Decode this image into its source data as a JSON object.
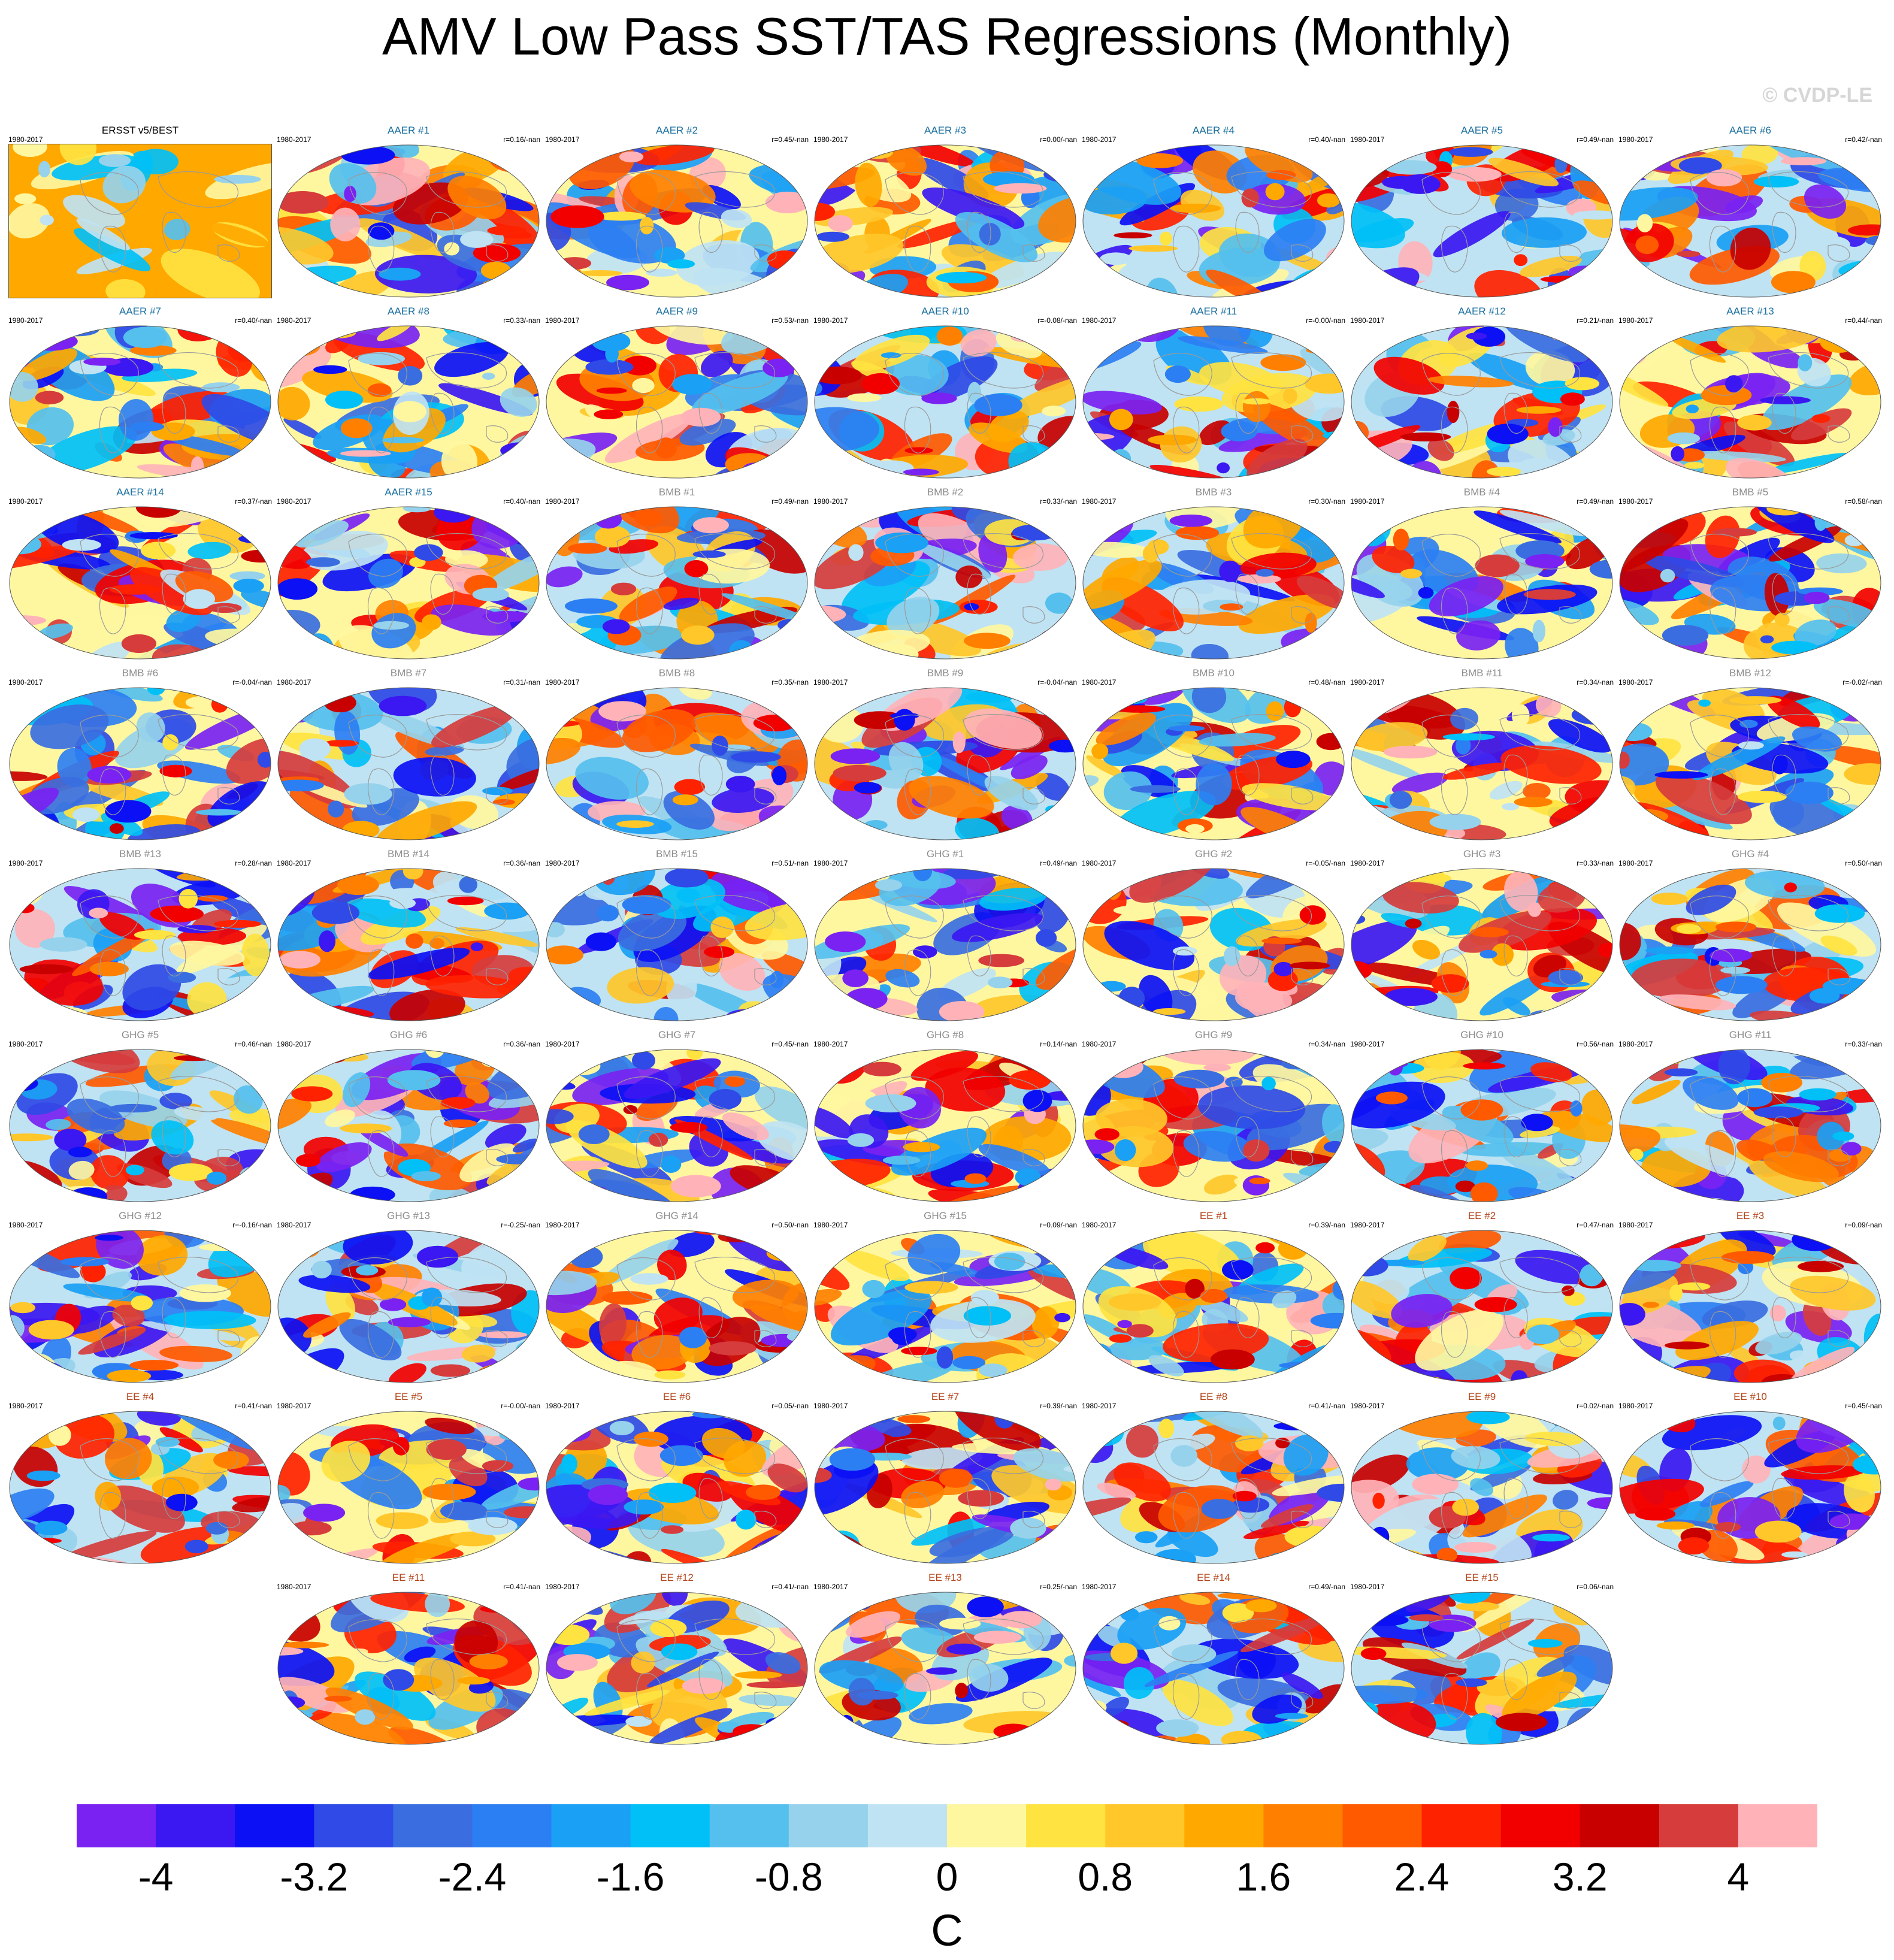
{
  "title": "AMV Low Pass SST/TAS Regressions (Monthly)",
  "copyright": "© CVDP-LE",
  "colors": {
    "title_obs": "#000000",
    "title_aaer": "#1a6fa0",
    "title_bmb": "#8c8c8c",
    "title_ghg": "#8c8c8c",
    "title_ee": "#b5451b",
    "ocean_outline": "#9a9a9a",
    "land": "#b0b0b0"
  },
  "colorbar": {
    "unit": "C",
    "tick_labels": [
      "-4",
      "-3.2",
      "-2.4",
      "-1.6",
      "-0.8",
      "0",
      "0.8",
      "1.6",
      "2.4",
      "3.2",
      "4"
    ],
    "colors": [
      "#7a22f2",
      "#3b17f2",
      "#0b10f5",
      "#2f4ae6",
      "#3a6ee0",
      "#2c7ff2",
      "#1aa0f5",
      "#00c0f7",
      "#55c0ee",
      "#96d2ec",
      "#bfe3f3",
      "#fff7a0",
      "#ffe340",
      "#ffc72a",
      "#ffa800",
      "#ff8000",
      "#ff5a00",
      "#ff2200",
      "#f20000",
      "#c80000",
      "#d63c3c",
      "#ffb3b8"
    ]
  },
  "panels": [
    {
      "title": "ERSST v5/BEST",
      "period": "1980-2017",
      "r": "",
      "group": "obs",
      "row": 0,
      "col": 0
    },
    {
      "title": "AAER #1",
      "period": "1980-2017",
      "r": "r=0.16/-nan",
      "group": "aaer",
      "row": 0,
      "col": 1
    },
    {
      "title": "AAER #2",
      "period": "1980-2017",
      "r": "r=0.45/-nan",
      "group": "aaer",
      "row": 0,
      "col": 2
    },
    {
      "title": "AAER #3",
      "period": "1980-2017",
      "r": "r=0.00/-nan",
      "group": "aaer",
      "row": 0,
      "col": 3
    },
    {
      "title": "AAER #4",
      "period": "1980-2017",
      "r": "r=0.40/-nan",
      "group": "aaer",
      "row": 0,
      "col": 4
    },
    {
      "title": "AAER #5",
      "period": "1980-2017",
      "r": "r=0.49/-nan",
      "group": "aaer",
      "row": 0,
      "col": 5
    },
    {
      "title": "AAER #6",
      "period": "1980-2017",
      "r": "r=0.42/-nan",
      "group": "aaer",
      "row": 0,
      "col": 6
    },
    {
      "title": "AAER #7",
      "period": "1980-2017",
      "r": "r=0.40/-nan",
      "group": "aaer",
      "row": 1,
      "col": 0
    },
    {
      "title": "AAER #8",
      "period": "1980-2017",
      "r": "r=0.33/-nan",
      "group": "aaer",
      "row": 1,
      "col": 1
    },
    {
      "title": "AAER #9",
      "period": "1980-2017",
      "r": "r=0.53/-nan",
      "group": "aaer",
      "row": 1,
      "col": 2
    },
    {
      "title": "AAER #10",
      "period": "1980-2017",
      "r": "r=-0.08/-nan",
      "group": "aaer",
      "row": 1,
      "col": 3
    },
    {
      "title": "AAER #11",
      "period": "1980-2017",
      "r": "r=-0.00/-nan",
      "group": "aaer",
      "row": 1,
      "col": 4
    },
    {
      "title": "AAER #12",
      "period": "1980-2017",
      "r": "r=0.21/-nan",
      "group": "aaer",
      "row": 1,
      "col": 5
    },
    {
      "title": "AAER #13",
      "period": "1980-2017",
      "r": "r=0.44/-nan",
      "group": "aaer",
      "row": 1,
      "col": 6
    },
    {
      "title": "AAER #14",
      "period": "1980-2017",
      "r": "r=0.37/-nan",
      "group": "aaer",
      "row": 2,
      "col": 0
    },
    {
      "title": "AAER #15",
      "period": "1980-2017",
      "r": "r=0.40/-nan",
      "group": "aaer",
      "row": 2,
      "col": 1
    },
    {
      "title": "BMB #1",
      "period": "1980-2017",
      "r": "r=0.49/-nan",
      "group": "bmb",
      "row": 2,
      "col": 2
    },
    {
      "title": "BMB #2",
      "period": "1980-2017",
      "r": "r=0.33/-nan",
      "group": "bmb",
      "row": 2,
      "col": 3
    },
    {
      "title": "BMB #3",
      "period": "1980-2017",
      "r": "r=0.30/-nan",
      "group": "bmb",
      "row": 2,
      "col": 4
    },
    {
      "title": "BMB #4",
      "period": "1980-2017",
      "r": "r=0.49/-nan",
      "group": "bmb",
      "row": 2,
      "col": 5
    },
    {
      "title": "BMB #5",
      "period": "1980-2017",
      "r": "r=0.58/-nan",
      "group": "bmb",
      "row": 2,
      "col": 6
    },
    {
      "title": "BMB #6",
      "period": "1980-2017",
      "r": "r=-0.04/-nan",
      "group": "bmb",
      "row": 3,
      "col": 0
    },
    {
      "title": "BMB #7",
      "period": "1980-2017",
      "r": "r=0.31/-nan",
      "group": "bmb",
      "row": 3,
      "col": 1
    },
    {
      "title": "BMB #8",
      "period": "1980-2017",
      "r": "r=0.35/-nan",
      "group": "bmb",
      "row": 3,
      "col": 2
    },
    {
      "title": "BMB #9",
      "period": "1980-2017",
      "r": "r=-0.04/-nan",
      "group": "bmb",
      "row": 3,
      "col": 3
    },
    {
      "title": "BMB #10",
      "period": "1980-2017",
      "r": "r=0.48/-nan",
      "group": "bmb",
      "row": 3,
      "col": 4
    },
    {
      "title": "BMB #11",
      "period": "1980-2017",
      "r": "r=0.34/-nan",
      "group": "bmb",
      "row": 3,
      "col": 5
    },
    {
      "title": "BMB #12",
      "period": "1980-2017",
      "r": "r=-0.02/-nan",
      "group": "bmb",
      "row": 3,
      "col": 6
    },
    {
      "title": "BMB #13",
      "period": "1980-2017",
      "r": "r=0.28/-nan",
      "group": "bmb",
      "row": 4,
      "col": 0
    },
    {
      "title": "BMB #14",
      "period": "1980-2017",
      "r": "r=0.36/-nan",
      "group": "bmb",
      "row": 4,
      "col": 1
    },
    {
      "title": "BMB #15",
      "period": "1980-2017",
      "r": "r=0.51/-nan",
      "group": "bmb",
      "row": 4,
      "col": 2
    },
    {
      "title": "GHG #1",
      "period": "1980-2017",
      "r": "r=0.49/-nan",
      "group": "ghg",
      "row": 4,
      "col": 3
    },
    {
      "title": "GHG #2",
      "period": "1980-2017",
      "r": "r=-0.05/-nan",
      "group": "ghg",
      "row": 4,
      "col": 4
    },
    {
      "title": "GHG #3",
      "period": "1980-2017",
      "r": "r=0.33/-nan",
      "group": "ghg",
      "row": 4,
      "col": 5
    },
    {
      "title": "GHG #4",
      "period": "1980-2017",
      "r": "r=0.50/-nan",
      "group": "ghg",
      "row": 4,
      "col": 6
    },
    {
      "title": "GHG #5",
      "period": "1980-2017",
      "r": "r=0.46/-nan",
      "group": "ghg",
      "row": 5,
      "col": 0
    },
    {
      "title": "GHG #6",
      "period": "1980-2017",
      "r": "r=0.36/-nan",
      "group": "ghg",
      "row": 5,
      "col": 1
    },
    {
      "title": "GHG #7",
      "period": "1980-2017",
      "r": "r=0.45/-nan",
      "group": "ghg",
      "row": 5,
      "col": 2
    },
    {
      "title": "GHG #8",
      "period": "1980-2017",
      "r": "r=0.14/-nan",
      "group": "ghg",
      "row": 5,
      "col": 3
    },
    {
      "title": "GHG #9",
      "period": "1980-2017",
      "r": "r=0.34/-nan",
      "group": "ghg",
      "row": 5,
      "col": 4
    },
    {
      "title": "GHG #10",
      "period": "1980-2017",
      "r": "r=0.56/-nan",
      "group": "ghg",
      "row": 5,
      "col": 5
    },
    {
      "title": "GHG #11",
      "period": "1980-2017",
      "r": "r=0.33/-nan",
      "group": "ghg",
      "row": 5,
      "col": 6
    },
    {
      "title": "GHG #12",
      "period": "1980-2017",
      "r": "r=-0.16/-nan",
      "group": "ghg",
      "row": 6,
      "col": 0
    },
    {
      "title": "GHG #13",
      "period": "1980-2017",
      "r": "r=-0.25/-nan",
      "group": "ghg",
      "row": 6,
      "col": 1
    },
    {
      "title": "GHG #14",
      "period": "1980-2017",
      "r": "r=0.50/-nan",
      "group": "ghg",
      "row": 6,
      "col": 2
    },
    {
      "title": "GHG #15",
      "period": "1980-2017",
      "r": "r=0.09/-nan",
      "group": "ghg",
      "row": 6,
      "col": 3
    },
    {
      "title": "EE #1",
      "period": "1980-2017",
      "r": "r=0.39/-nan",
      "group": "ee",
      "row": 6,
      "col": 4
    },
    {
      "title": "EE #2",
      "period": "1980-2017",
      "r": "r=0.47/-nan",
      "group": "ee",
      "row": 6,
      "col": 5
    },
    {
      "title": "EE #3",
      "period": "1980-2017",
      "r": "r=0.09/-nan",
      "group": "ee",
      "row": 6,
      "col": 6
    },
    {
      "title": "EE #4",
      "period": "1980-2017",
      "r": "r=0.41/-nan",
      "group": "ee",
      "row": 7,
      "col": 0
    },
    {
      "title": "EE #5",
      "period": "1980-2017",
      "r": "r=-0.00/-nan",
      "group": "ee",
      "row": 7,
      "col": 1
    },
    {
      "title": "EE #6",
      "period": "1980-2017",
      "r": "r=0.05/-nan",
      "group": "ee",
      "row": 7,
      "col": 2
    },
    {
      "title": "EE #7",
      "period": "1980-2017",
      "r": "r=0.39/-nan",
      "group": "ee",
      "row": 7,
      "col": 3
    },
    {
      "title": "EE #8",
      "period": "1980-2017",
      "r": "r=0.41/-nan",
      "group": "ee",
      "row": 7,
      "col": 4
    },
    {
      "title": "EE #9",
      "period": "1980-2017",
      "r": "r=0.02/-nan",
      "group": "ee",
      "row": 7,
      "col": 5
    },
    {
      "title": "EE #10",
      "period": "1980-2017",
      "r": "r=0.45/-nan",
      "group": "ee",
      "row": 7,
      "col": 6
    },
    {
      "title": "EE #11",
      "period": "1980-2017",
      "r": "r=0.41/-nan",
      "group": "ee",
      "row": 8,
      "col": 1
    },
    {
      "title": "EE #12",
      "period": "1980-2017",
      "r": "r=0.41/-nan",
      "group": "ee",
      "row": 8,
      "col": 2
    },
    {
      "title": "EE #13",
      "period": "1980-2017",
      "r": "r=0.25/-nan",
      "group": "ee",
      "row": 8,
      "col": 3
    },
    {
      "title": "EE #14",
      "period": "1980-2017",
      "r": "r=0.49/-nan",
      "group": "ee",
      "row": 8,
      "col": 4
    },
    {
      "title": "EE #15",
      "period": "1980-2017",
      "r": "r=0.06/-nan",
      "group": "ee",
      "row": 8,
      "col": 5
    }
  ]
}
